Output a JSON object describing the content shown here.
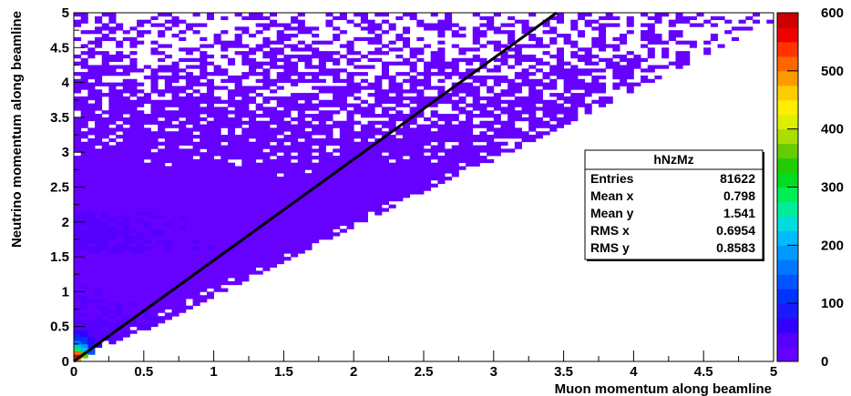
{
  "chart_data": {
    "type": "heatmap",
    "histogram_name": "hNzMz",
    "xlabel": "Muon momentum along beamline",
    "ylabel": "Neutrino momentum along beamline",
    "xlim": [
      0,
      5
    ],
    "ylim": [
      0,
      5
    ],
    "x_ticks": [
      "0",
      "0.5",
      "1",
      "1.5",
      "2",
      "2.5",
      "3",
      "3.5",
      "4",
      "4.5",
      "5"
    ],
    "y_ticks": [
      "0",
      "0.5",
      "1",
      "1.5",
      "2",
      "2.5",
      "3",
      "3.5",
      "4",
      "4.5",
      "5"
    ],
    "z_range": [
      0,
      600
    ],
    "z_ticks": [
      "0",
      "100",
      "200",
      "300",
      "400",
      "500",
      "600"
    ],
    "palette": [
      "#6600ff",
      "#5500ff",
      "#3300ff",
      "#1a1aff",
      "#0033ff",
      "#0055ff",
      "#0077ff",
      "#0099ff",
      "#00bbff",
      "#00dddd",
      "#00ee99",
      "#00ee55",
      "#00dd22",
      "#22cc00",
      "#66cc00",
      "#aadd00",
      "#ddee00",
      "#ffee00",
      "#ffcc00",
      "#ff9900",
      "#ff6600",
      "#ff3300",
      "#ee0000",
      "#cc0000"
    ],
    "stats": {
      "title": "hNzMz",
      "rows": [
        {
          "label": "Entries",
          "value": "81622"
        },
        {
          "label": "Mean x",
          "value": "0.798"
        },
        {
          "label": "Mean y",
          "value": "1.541"
        },
        {
          "label": "RMS x",
          "value": "0.6954"
        },
        {
          "label": "RMS y",
          "value": "0.8583"
        }
      ]
    },
    "diagonal_line": {
      "x": [
        0,
        3.45
      ],
      "y": [
        0,
        5
      ]
    },
    "color_scale": "linear"
  }
}
